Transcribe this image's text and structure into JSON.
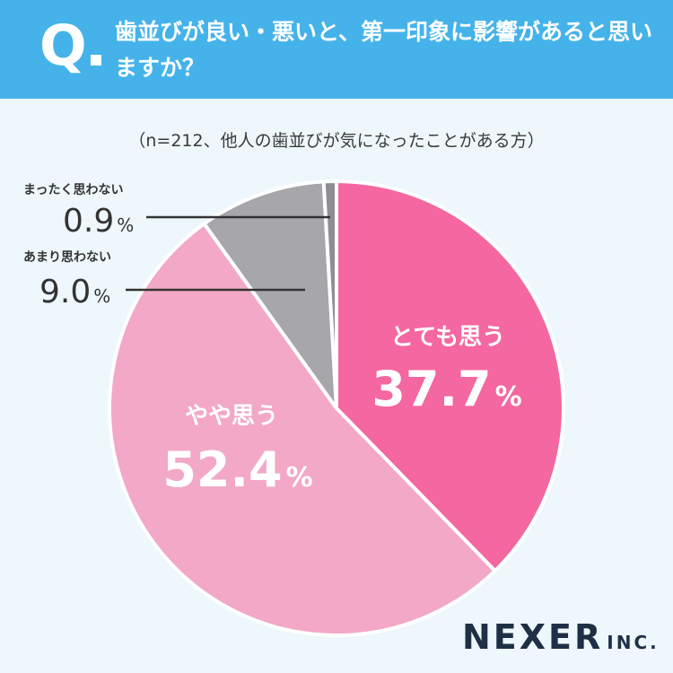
{
  "header": {
    "q_letter": "Q",
    "question": "歯並びが良い・悪いと、第一印象に影響があると思いますか？",
    "bg_color": "#45b3ea"
  },
  "note": "（n=212、他人の歯並びが気になったことがある方）",
  "brand": {
    "name": "NEXER",
    "suffix": "INC."
  },
  "chart_data": {
    "type": "pie",
    "title": "歯並びが良い・悪いと、第一印象に影響があると思いますか？",
    "subtitle": "（n=212、他人の歯並びが気になったことがある方）",
    "unit": "%",
    "slices": [
      {
        "label": "とても思う",
        "value": 37.7,
        "display": "37.7",
        "color": "#f467a0"
      },
      {
        "label": "やや思う",
        "value": 52.4,
        "display": "52.4",
        "color": "#f2a8c6"
      },
      {
        "label": "あまり思わない",
        "value": 9.0,
        "display": "9.0",
        "color": "#a7a6aa"
      },
      {
        "label": "まったく思わない",
        "value": 0.9,
        "display": "0.9",
        "color": "#8e8d91"
      }
    ]
  }
}
